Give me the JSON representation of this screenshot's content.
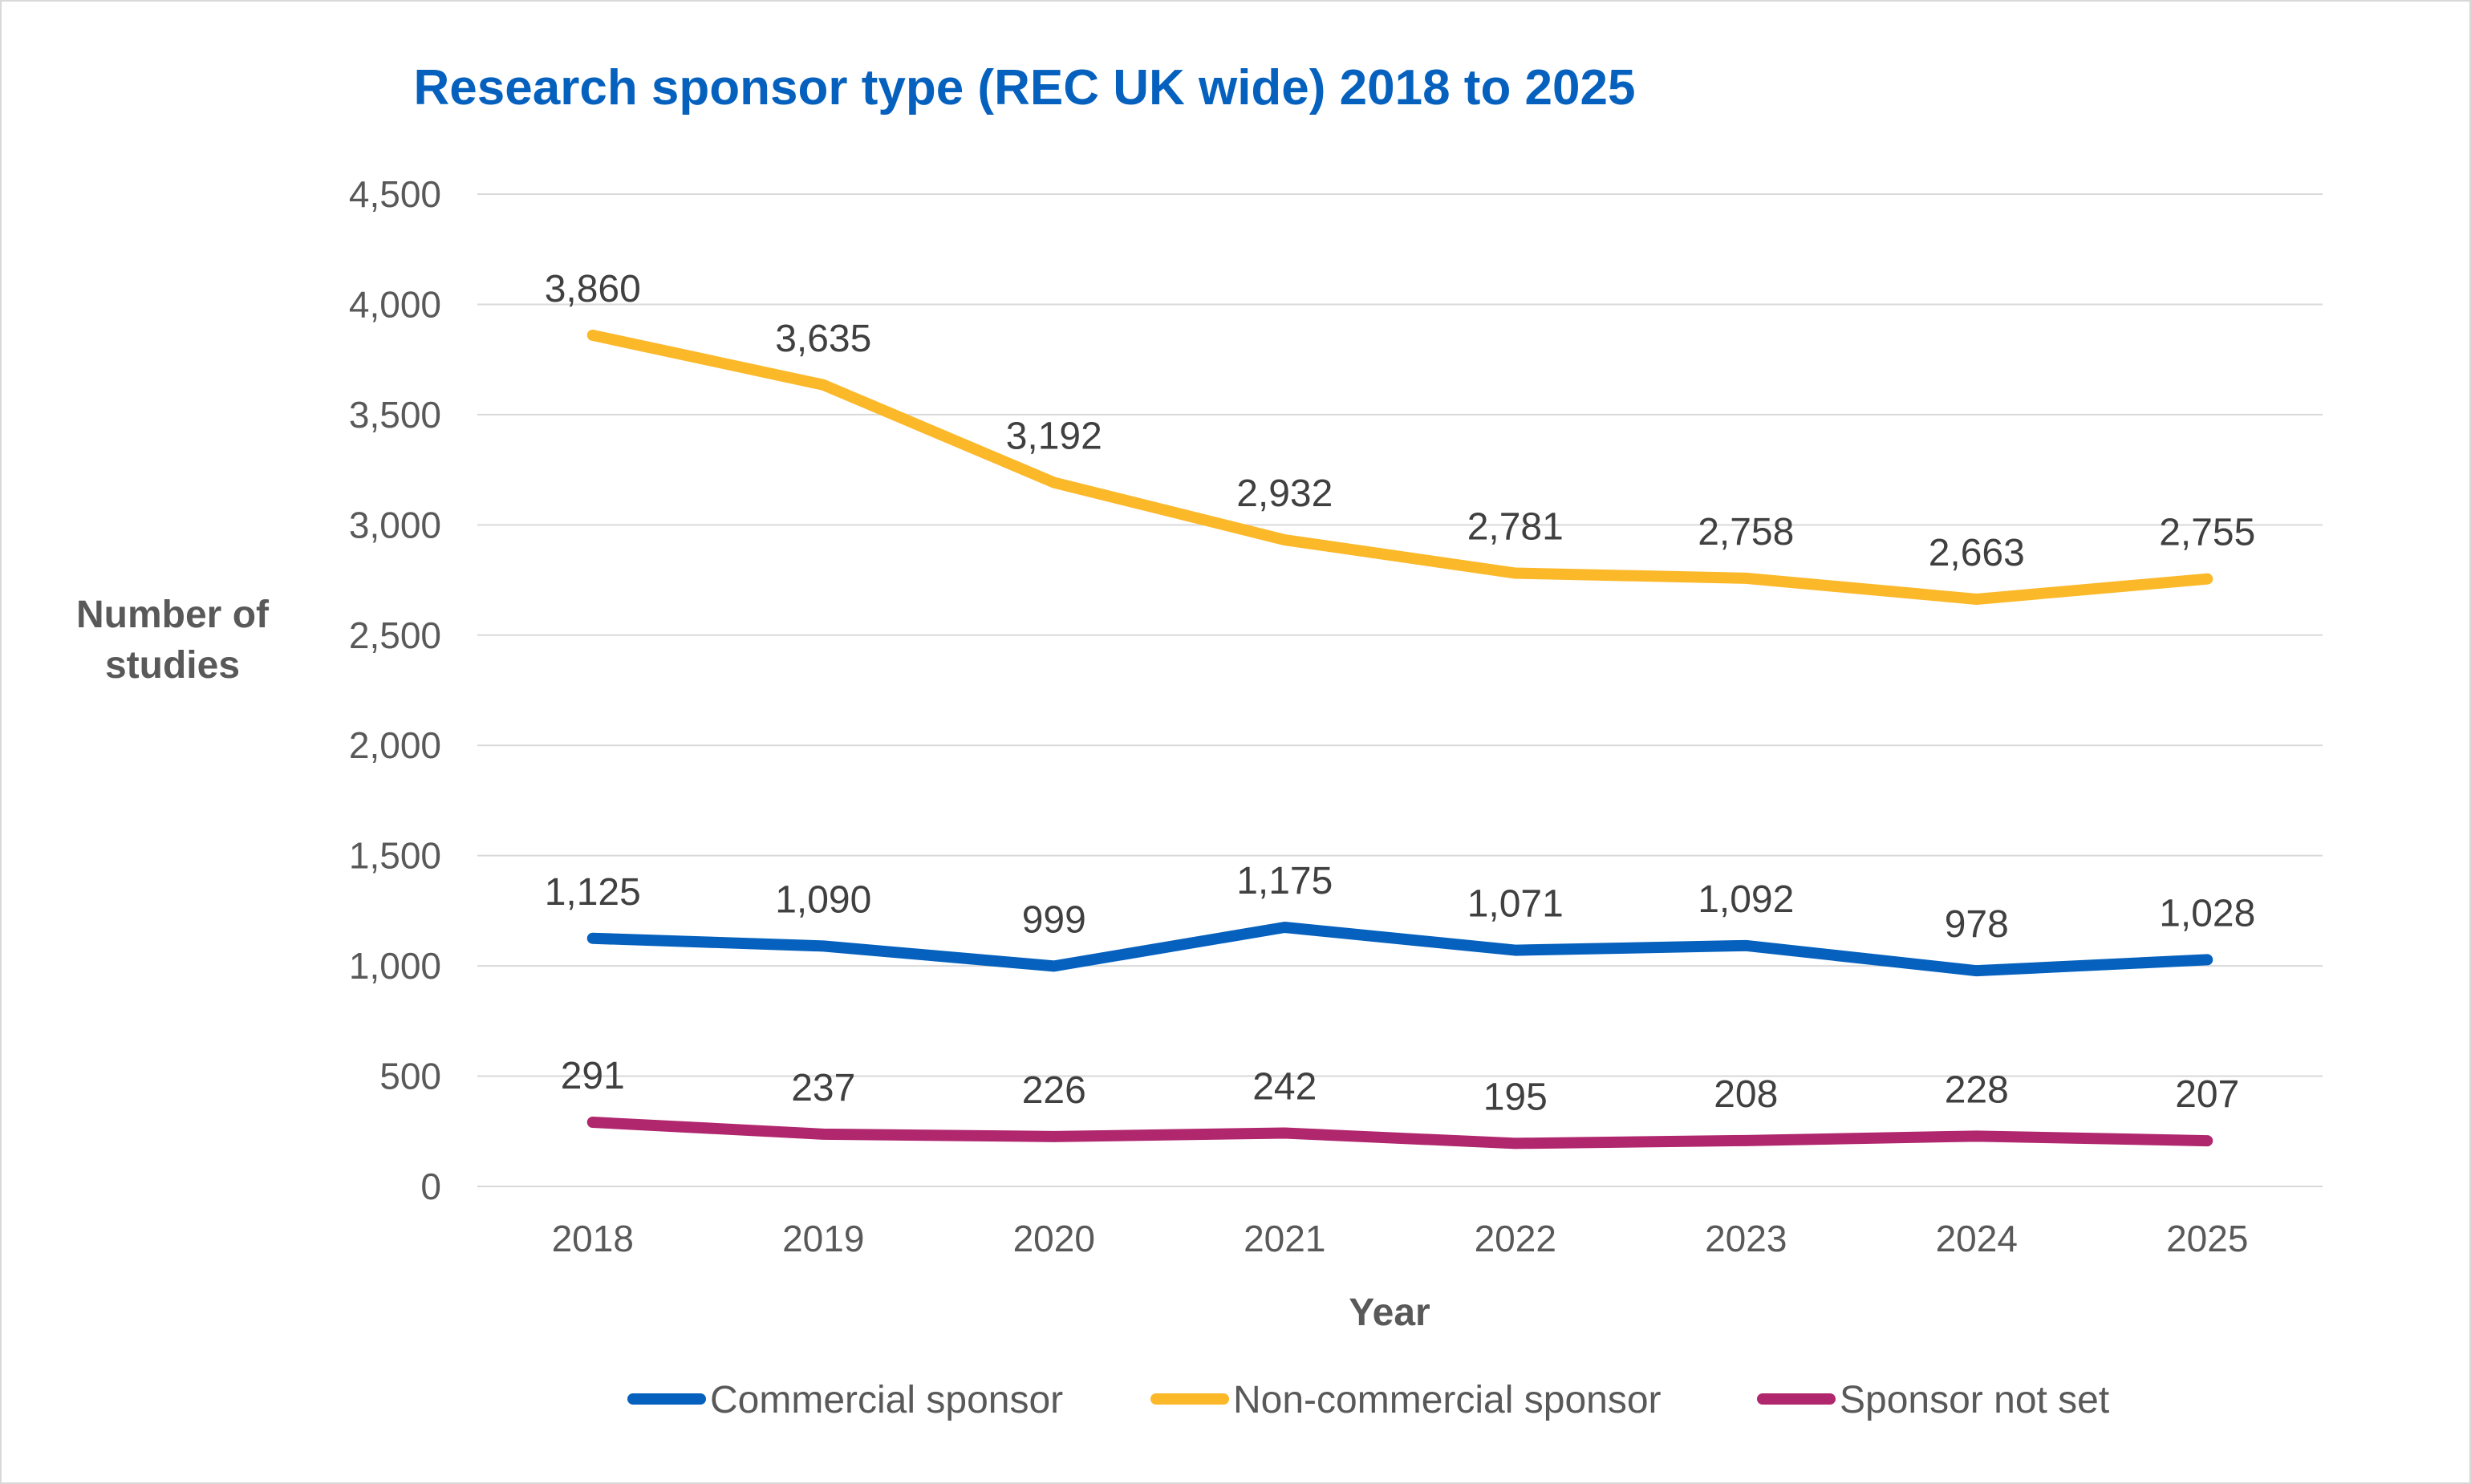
{
  "chart_data": {
    "type": "line",
    "title": "Research sponsor type (REC UK wide) 2018 to 2025",
    "xlabel": "Year",
    "ylabel_lines": [
      "Number of",
      "studies"
    ],
    "categories": [
      "2018",
      "2019",
      "2020",
      "2021",
      "2022",
      "2023",
      "2024",
      "2025"
    ],
    "ylim": [
      0,
      4500
    ],
    "yticks": [
      0,
      500,
      1000,
      1500,
      2000,
      2500,
      3000,
      3500,
      4000,
      4500
    ],
    "ytick_labels": [
      "0",
      "500",
      "1,000",
      "1,500",
      "2,000",
      "2,500",
      "3,000",
      "3,500",
      "4,000",
      "4,500"
    ],
    "grid": true,
    "legend_position": "bottom",
    "series": [
      {
        "name": "Commercial sponsor",
        "color": "#0561bd",
        "values": [
          1125,
          1090,
          999,
          1175,
          1071,
          1092,
          978,
          1028
        ],
        "labels": [
          "1,125",
          "1,090",
          "999",
          "1,175",
          "1,071",
          "1,092",
          "978",
          "1,028"
        ]
      },
      {
        "name": "Non-commercial sponsor",
        "color": "#fbb829",
        "values": [
          3860,
          3635,
          3192,
          2932,
          2781,
          2758,
          2663,
          2755
        ],
        "labels": [
          "3,860",
          "3,635",
          "3,192",
          "2,932",
          "2,781",
          "2,758",
          "2,663",
          "2,755"
        ]
      },
      {
        "name": "Sponsor not set",
        "color": "#b0276e",
        "values": [
          291,
          237,
          226,
          242,
          195,
          208,
          228,
          207
        ],
        "labels": [
          "291",
          "237",
          "226",
          "242",
          "195",
          "208",
          "228",
          "207"
        ]
      }
    ]
  }
}
